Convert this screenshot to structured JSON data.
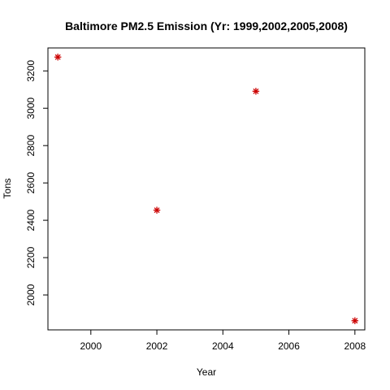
{
  "chart_data": {
    "type": "scatter",
    "title": "Baltimore PM2.5 Emission (Yr: 1999,2002,2005,2008)",
    "xlabel": "Year",
    "ylabel": "Tons",
    "x": [
      1999,
      2002,
      2005,
      2008
    ],
    "y": [
      3274,
      2454,
      3091,
      1862
    ],
    "xlim": [
      1998.7,
      2008.3
    ],
    "ylim": [
      1813,
      3323
    ],
    "xticks": [
      2000,
      2002,
      2004,
      2006,
      2008
    ],
    "yticks": [
      2000,
      2200,
      2400,
      2600,
      2800,
      3000,
      3200
    ],
    "grid": false,
    "marker": "asterisk",
    "marker_color": "#cc0000"
  }
}
